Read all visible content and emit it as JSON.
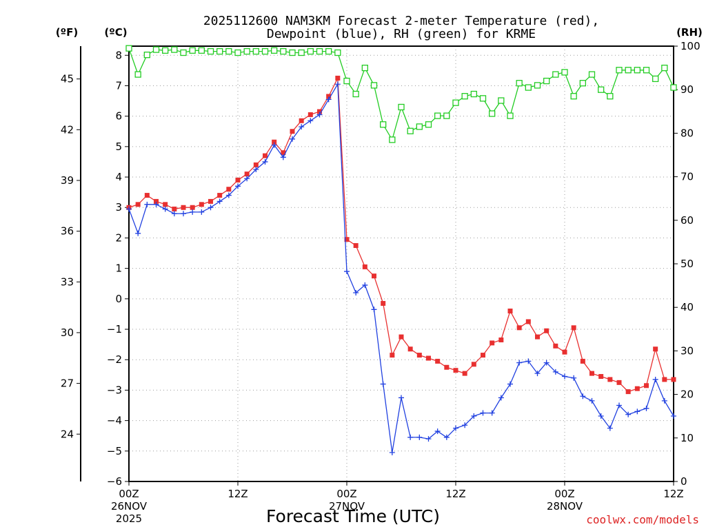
{
  "chart_data": {
    "type": "line",
    "title": [
      "2025112600 NAM3KM Forecast 2-meter Temperature (red),",
      "Dewpoint (blue), RH (green) for KRME"
    ],
    "xlabel": "Forecast Time (UTC)",
    "credit": "coolwx.com/models",
    "units": {
      "fahrenheit": "(ºF)",
      "celsius": "(ºC)",
      "rh": "(RH)"
    },
    "x_range_hours": [
      0,
      60
    ],
    "ylim_c": [
      -6,
      8.3
    ],
    "ylim_rh": [
      0,
      100
    ],
    "x_ticks": [
      {
        "hour": 0,
        "lines": [
          "00Z",
          "26NOV",
          "2025"
        ]
      },
      {
        "hour": 12,
        "lines": [
          "12Z"
        ]
      },
      {
        "hour": 24,
        "lines": [
          "00Z",
          "27NOV"
        ]
      },
      {
        "hour": 36,
        "lines": [
          "12Z"
        ]
      },
      {
        "hour": 48,
        "lines": [
          "00Z",
          "28NOV"
        ]
      },
      {
        "hour": 60,
        "lines": [
          "12Z"
        ]
      }
    ],
    "y_ticks_c": [
      -6,
      -5,
      -4,
      -3,
      -2,
      -1,
      0,
      1,
      2,
      3,
      4,
      5,
      6,
      7,
      8
    ],
    "y_ticks_f": [
      24,
      27,
      30,
      33,
      36,
      39,
      42,
      45
    ],
    "y_ticks_rh": [
      0,
      10,
      20,
      30,
      40,
      50,
      60,
      70,
      80,
      90,
      100
    ],
    "series": [
      {
        "name": "Temperature",
        "color": "#e83030",
        "marker": "filled-square",
        "x_hours": [
          0,
          1,
          2,
          3,
          4,
          5,
          6,
          7,
          8,
          9,
          10,
          11,
          12,
          13,
          14,
          15,
          16,
          17,
          18,
          19,
          20,
          21,
          22,
          23,
          24,
          25,
          26,
          27,
          28,
          29,
          30,
          31,
          32,
          33,
          34,
          35,
          36,
          37,
          38,
          39,
          40,
          41,
          42,
          43,
          44,
          45,
          46,
          47,
          48,
          49,
          50,
          51,
          52,
          53,
          54,
          55,
          56,
          57,
          58,
          59,
          60
        ],
        "values": [
          3.0,
          3.1,
          3.4,
          3.2,
          3.1,
          2.95,
          3.0,
          3.0,
          3.1,
          3.2,
          3.4,
          3.6,
          3.9,
          4.1,
          4.4,
          4.7,
          5.15,
          4.8,
          5.5,
          5.85,
          6.05,
          6.15,
          6.65,
          7.25,
          1.95,
          1.75,
          1.05,
          0.75,
          -0.15,
          -1.85,
          -1.25,
          -1.65,
          -1.85,
          -1.95,
          -2.05,
          -2.25,
          -2.35,
          -2.45,
          -2.15,
          -1.85,
          -1.45,
          -1.35,
          -0.4,
          -0.95,
          -0.75,
          -1.25,
          -1.05,
          -1.55,
          -1.75,
          -0.95,
          -2.05,
          -2.45,
          -2.55,
          -2.65,
          -2.75,
          -3.05,
          -2.95,
          -2.85,
          -1.65,
          -2.65,
          -2.65
        ]
      },
      {
        "name": "Dewpoint",
        "color": "#2040e0",
        "marker": "plus",
        "x_hours": [
          0,
          1,
          2,
          3,
          4,
          5,
          6,
          7,
          8,
          9,
          10,
          11,
          12,
          13,
          14,
          15,
          16,
          17,
          18,
          19,
          20,
          21,
          22,
          23,
          24,
          25,
          26,
          27,
          28,
          29,
          30,
          31,
          32,
          33,
          34,
          35,
          36,
          37,
          38,
          39,
          40,
          41,
          42,
          43,
          44,
          45,
          46,
          47,
          48,
          49,
          50,
          51,
          52,
          53,
          54,
          55,
          56,
          57,
          58,
          59,
          60
        ],
        "values": [
          2.95,
          2.15,
          3.1,
          3.1,
          2.95,
          2.8,
          2.8,
          2.85,
          2.85,
          3.0,
          3.2,
          3.4,
          3.7,
          3.95,
          4.25,
          4.5,
          5.05,
          4.65,
          5.25,
          5.65,
          5.85,
          6.05,
          6.55,
          7.05,
          0.9,
          0.2,
          0.45,
          -0.35,
          -2.8,
          -5.05,
          -3.25,
          -4.55,
          -4.55,
          -4.6,
          -4.35,
          -4.55,
          -4.25,
          -4.15,
          -3.85,
          -3.75,
          -3.75,
          -3.25,
          -2.8,
          -2.1,
          -2.05,
          -2.45,
          -2.1,
          -2.4,
          -2.55,
          -2.6,
          -3.2,
          -3.35,
          -3.85,
          -4.25,
          -3.5,
          -3.8,
          -3.7,
          -3.6,
          -2.65,
          -3.35,
          -3.85
        ]
      },
      {
        "name": "RH",
        "color": "#22cc22",
        "marker": "open-square",
        "x_hours": [
          0,
          1,
          2,
          3,
          4,
          5,
          6,
          7,
          8,
          9,
          10,
          11,
          12,
          13,
          14,
          15,
          16,
          17,
          18,
          19,
          20,
          21,
          22,
          23,
          24,
          25,
          26,
          27,
          28,
          29,
          30,
          31,
          32,
          33,
          34,
          35,
          36,
          37,
          38,
          39,
          40,
          41,
          42,
          43,
          44,
          45,
          46,
          47,
          48,
          49,
          50,
          51,
          52,
          53,
          54,
          55,
          56,
          57,
          58,
          59,
          60
        ],
        "values": [
          99.5,
          93.5,
          98.0,
          99.2,
          99.0,
          99.2,
          98.5,
          99.0,
          99.0,
          98.8,
          98.8,
          98.8,
          98.5,
          98.8,
          98.8,
          98.8,
          99.0,
          98.8,
          98.5,
          98.5,
          98.8,
          98.8,
          98.8,
          98.5,
          92.0,
          89.0,
          95.0,
          91.0,
          82.0,
          78.5,
          86.0,
          80.5,
          81.5,
          82.0,
          84.0,
          84.0,
          87.0,
          88.5,
          89.0,
          88.0,
          84.5,
          87.5,
          84.0,
          91.5,
          90.5,
          91.0,
          92.0,
          93.5,
          94.0,
          88.5,
          91.5,
          93.5,
          90.0,
          88.5,
          94.5,
          94.5,
          94.5,
          94.5,
          92.5,
          95.0,
          90.5
        ]
      }
    ]
  }
}
